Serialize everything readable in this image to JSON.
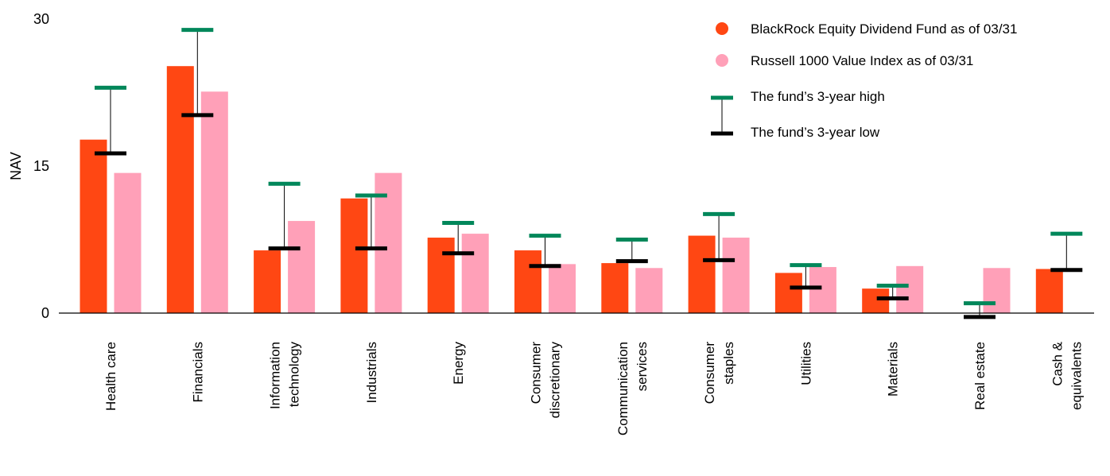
{
  "chart_data": {
    "type": "bar",
    "title": "",
    "xlabel": "",
    "ylabel": "NAV",
    "ylim": [
      0,
      30
    ],
    "yticks": [
      0,
      15,
      30
    ],
    "grid": false,
    "legend_position": "top-right",
    "categories": [
      [
        "Health care"
      ],
      [
        "Financials"
      ],
      [
        "Information",
        "technology"
      ],
      [
        "Industrials"
      ],
      [
        "Energy"
      ],
      [
        "Consumer",
        "discretionary"
      ],
      [
        "Communication",
        "services"
      ],
      [
        "Consumer",
        "staples"
      ],
      [
        "Utilities"
      ],
      [
        "Materials"
      ],
      [
        "Real estate"
      ],
      [
        "Cash &",
        "equivalents"
      ]
    ],
    "series": [
      {
        "name": "BlackRock Equity Dividend Fund as of 03/31",
        "color": "#ff4713",
        "values": [
          17.7,
          25.2,
          6.4,
          11.7,
          7.7,
          6.4,
          5.1,
          7.9,
          4.1,
          2.5,
          0,
          4.5
        ]
      },
      {
        "name": "Russell 1000 Value Index as of 03/31",
        "color": "#ffa0b8",
        "values": [
          14.3,
          22.6,
          9.4,
          14.3,
          8.1,
          5.0,
          4.6,
          7.7,
          4.7,
          4.8,
          4.6,
          null
        ]
      }
    ],
    "ranges": [
      {
        "high_name": "The fund’s 3-year high",
        "low_name": "The fund’s 3-year low",
        "high_color": "#00875a",
        "low_color": "#000000",
        "high": [
          23.0,
          28.9,
          13.2,
          12.0,
          9.2,
          7.9,
          7.5,
          10.1,
          4.9,
          2.8,
          1.0,
          8.1
        ],
        "low": [
          16.3,
          20.2,
          6.6,
          6.6,
          6.1,
          4.8,
          5.3,
          5.4,
          2.6,
          1.5,
          -0.4,
          4.4
        ]
      }
    ]
  }
}
